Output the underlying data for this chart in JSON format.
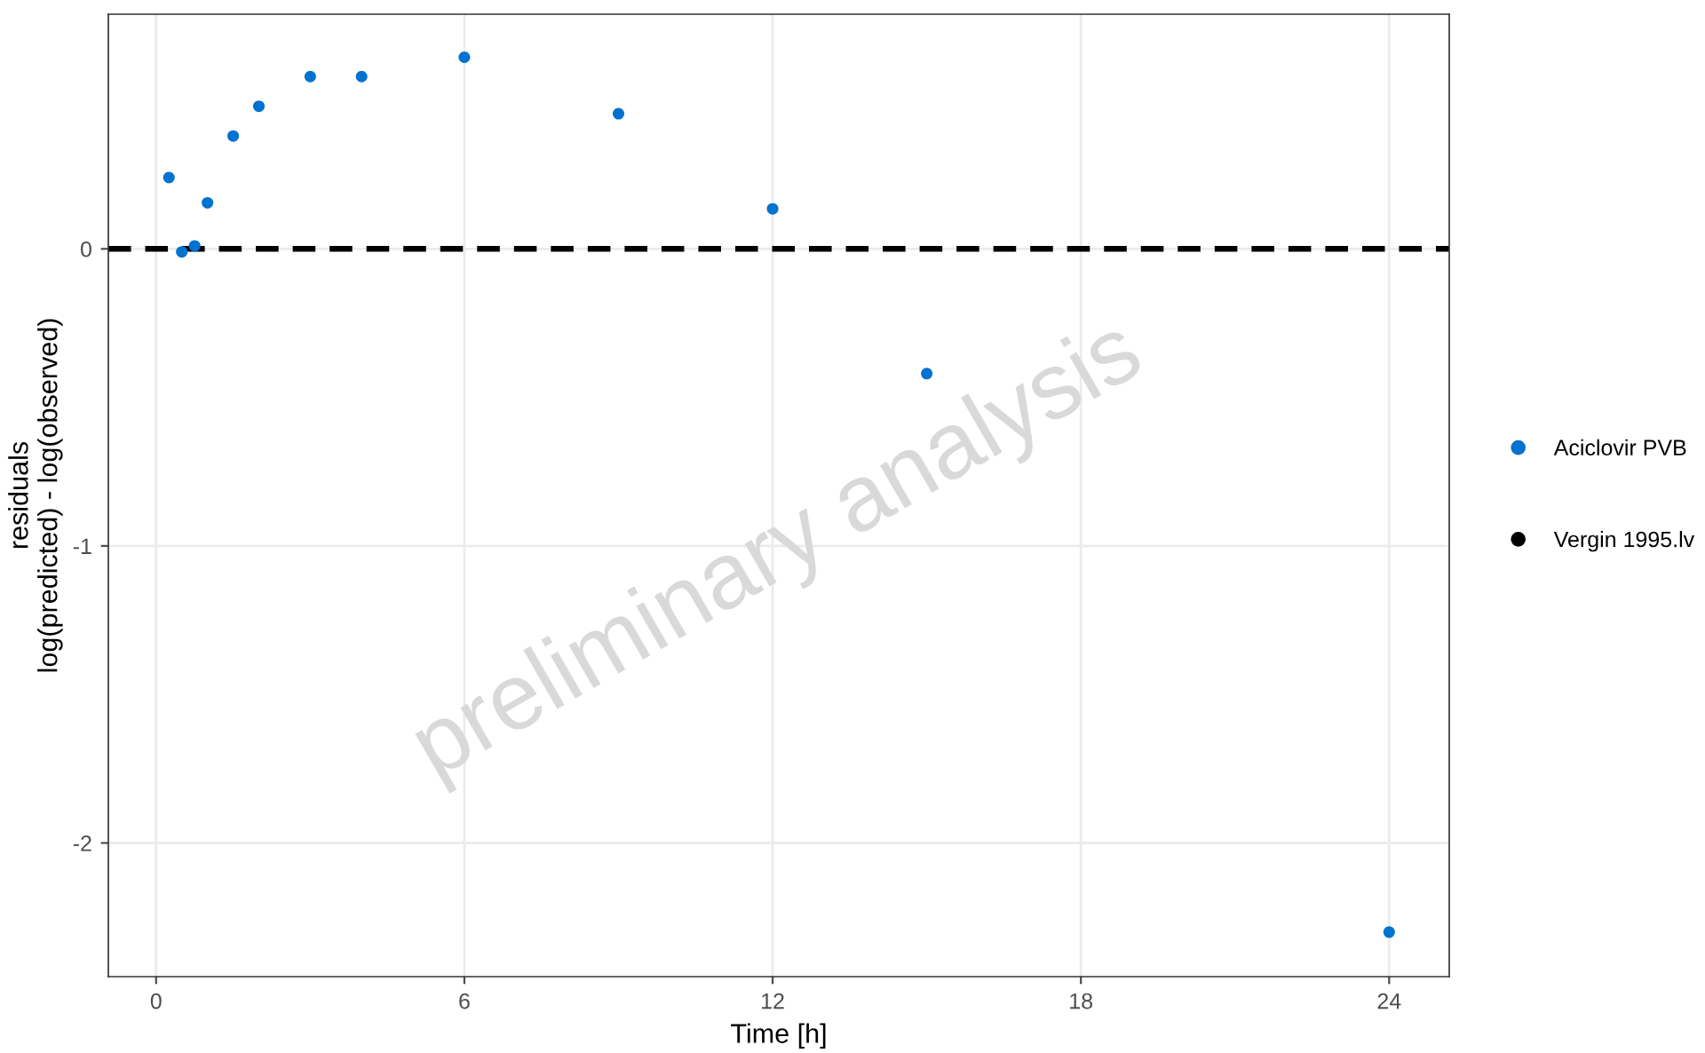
{
  "chart_data": {
    "type": "scatter",
    "xlabel": "Time [h]",
    "ylabel": "residuals\nlog(predicted) - log(observed)",
    "x": [
      0.25,
      0.5,
      0.75,
      1,
      1.5,
      2,
      3,
      4,
      6,
      9,
      12,
      15,
      24
    ],
    "series": [
      {
        "name": "Aciclovir PVB",
        "color": "#0072cf",
        "values": [
          0.24,
          -0.01,
          0.01,
          0.155,
          0.38,
          0.48,
          0.58,
          0.58,
          0.645,
          0.455,
          0.135,
          -0.42,
          -2.3
        ]
      },
      {
        "name": "Vergin 1995.lv",
        "color": "#000000",
        "values": [
          null,
          null,
          null,
          null,
          null,
          null,
          null,
          null,
          null,
          null,
          null,
          null,
          null
        ]
      }
    ],
    "xlim": [
      -0.93,
      25.17
    ],
    "ylim": [
      -2.45,
      0.79
    ],
    "xticks": [
      0,
      6,
      12,
      18,
      24
    ],
    "yticks": [
      -2,
      -1,
      0
    ],
    "ref_lines": [
      {
        "axis": "y",
        "value": 0,
        "color": "#000000",
        "line_style": "dashed"
      }
    ],
    "annotations": [
      "preliminary analysis"
    ],
    "grid": true,
    "legend": "right",
    "marker": "circle"
  }
}
